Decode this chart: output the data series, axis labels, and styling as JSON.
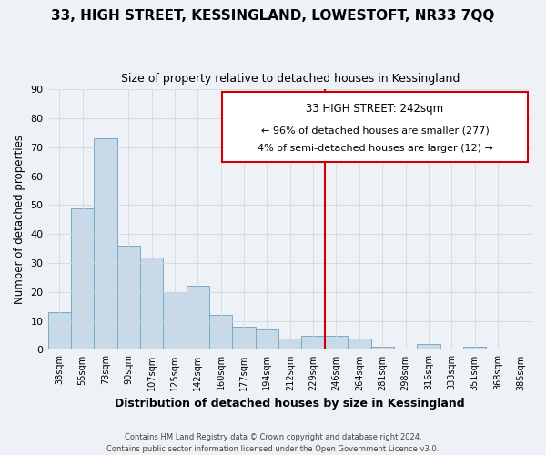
{
  "title": "33, HIGH STREET, KESSINGLAND, LOWESTOFT, NR33 7QQ",
  "subtitle": "Size of property relative to detached houses in Kessingland",
  "xlabel": "Distribution of detached houses by size in Kessingland",
  "ylabel": "Number of detached properties",
  "bar_labels": [
    "38sqm",
    "55sqm",
    "73sqm",
    "90sqm",
    "107sqm",
    "125sqm",
    "142sqm",
    "160sqm",
    "177sqm",
    "194sqm",
    "212sqm",
    "229sqm",
    "246sqm",
    "264sqm",
    "281sqm",
    "298sqm",
    "316sqm",
    "333sqm",
    "351sqm",
    "368sqm",
    "385sqm"
  ],
  "bar_values": [
    13,
    49,
    73,
    36,
    32,
    20,
    22,
    12,
    8,
    7,
    4,
    5,
    5,
    4,
    1,
    0,
    2,
    0,
    1,
    0,
    0
  ],
  "bar_color": "#c8d9e8",
  "bar_edge_color": "#7aaac8",
  "ylim": [
    0,
    90
  ],
  "yticks": [
    0,
    10,
    20,
    30,
    40,
    50,
    60,
    70,
    80,
    90
  ],
  "property_line_x": 12.0,
  "property_line_color": "#cc0000",
  "annotation_title": "33 HIGH STREET: 242sqm",
  "annotation_line1": "← 96% of detached houses are smaller (277)",
  "annotation_line2": "4% of semi-detached houses are larger (12) →",
  "footer_line1": "Contains HM Land Registry data © Crown copyright and database right 2024.",
  "footer_line2": "Contains public sector information licensed under the Open Government Licence v3.0.",
  "background_color": "#eef2f7",
  "plot_background": "#eef2f7",
  "grid_color": "#d0d8e4",
  "title_fontsize": 11,
  "subtitle_fontsize": 9
}
